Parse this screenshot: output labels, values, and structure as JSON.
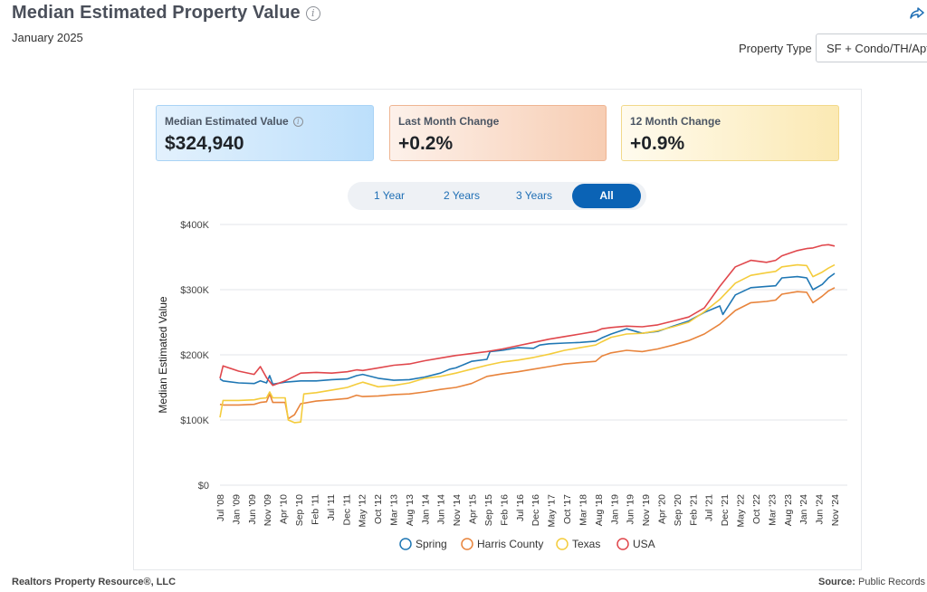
{
  "header": {
    "title": "Median Estimated Property Value",
    "subtitle": "January 2025",
    "property_type_label": "Property Type",
    "property_type_value": "SF + Condo/TH/Apt"
  },
  "stats": [
    {
      "label": "Median Estimated Value",
      "value": "$324,940"
    },
    {
      "label": "Last Month Change",
      "value": "+0.2%"
    },
    {
      "label": "12 Month Change",
      "value": "+0.9%"
    }
  ],
  "range_tabs": [
    {
      "label": "1 Year",
      "active": false
    },
    {
      "label": "2 Years",
      "active": false
    },
    {
      "label": "3 Years",
      "active": false
    },
    {
      "label": "All",
      "active": true
    }
  ],
  "footer": {
    "left": "Realtors Property Resource®, LLC",
    "source_label": "Source:",
    "source_value": "Public Records"
  },
  "chart_data": {
    "type": "line",
    "title": "",
    "xlabel": "",
    "ylabel": "Median Estimated Value",
    "ylim": [
      0,
      400000
    ],
    "yticks": [
      0,
      100000,
      200000,
      300000,
      400000
    ],
    "ytick_labels": [
      "$0",
      "$100K",
      "$200K",
      "$300K",
      "$400K"
    ],
    "x_range": [
      "2008-07",
      "2025-01"
    ],
    "xtick_labels": [
      "Jul '08",
      "Jan '09",
      "Jun '09",
      "Nov '09",
      "Apr '10",
      "Sep '10",
      "Feb '11",
      "Jul '11",
      "Dec '11",
      "May '12",
      "Oct '12",
      "Mar '13",
      "Aug '13",
      "Jan '14",
      "Jun '14",
      "Nov '14",
      "Apr '15",
      "Sep '15",
      "Feb '16",
      "Jul '16",
      "Dec '16",
      "May '17",
      "Oct '17",
      "Mar '18",
      "Aug '18",
      "Jan '19",
      "Jun '19",
      "Nov '19",
      "Apr '20",
      "Sep '20",
      "Feb '21",
      "Jul '21",
      "Dec '21",
      "May '22",
      "Oct '22",
      "Mar '23",
      "Aug '23",
      "Jan '24",
      "Jun '24",
      "Nov '24"
    ],
    "grid": true,
    "legend_position": "bottom",
    "series": [
      {
        "name": "Spring",
        "color": "#1f77b4",
        "points": [
          [
            "2008-07",
            163000
          ],
          [
            "2008-08",
            160000
          ],
          [
            "2009-01",
            157000
          ],
          [
            "2009-06",
            156000
          ],
          [
            "2009-08",
            160000
          ],
          [
            "2009-10",
            157000
          ],
          [
            "2009-11",
            168000
          ],
          [
            "2009-12",
            155000
          ],
          [
            "2010-04",
            158000
          ],
          [
            "2010-09",
            160000
          ],
          [
            "2011-02",
            160000
          ],
          [
            "2011-07",
            162000
          ],
          [
            "2011-12",
            163000
          ],
          [
            "2012-03",
            168000
          ],
          [
            "2012-05",
            170000
          ],
          [
            "2012-10",
            164000
          ],
          [
            "2013-03",
            161000
          ],
          [
            "2013-08",
            162000
          ],
          [
            "2014-01",
            166000
          ],
          [
            "2014-06",
            172000
          ],
          [
            "2014-09",
            178000
          ],
          [
            "2014-11",
            180000
          ],
          [
            "2015-02",
            186000
          ],
          [
            "2015-04",
            190000
          ],
          [
            "2015-09",
            193000
          ],
          [
            "2015-10",
            205000
          ],
          [
            "2016-02",
            207000
          ],
          [
            "2016-07",
            211000
          ],
          [
            "2016-12",
            210000
          ],
          [
            "2017-02",
            215000
          ],
          [
            "2017-05",
            217000
          ],
          [
            "2017-10",
            218000
          ],
          [
            "2018-03",
            219000
          ],
          [
            "2018-08",
            221000
          ],
          [
            "2018-10",
            226000
          ],
          [
            "2019-01",
            232000
          ],
          [
            "2019-06",
            240000
          ],
          [
            "2019-11",
            233000
          ],
          [
            "2020-04",
            236000
          ],
          [
            "2020-09",
            244000
          ],
          [
            "2021-02",
            252000
          ],
          [
            "2021-07",
            265000
          ],
          [
            "2021-12",
            275000
          ],
          [
            "2022-01",
            262000
          ],
          [
            "2022-05",
            292000
          ],
          [
            "2022-10",
            303000
          ],
          [
            "2023-03",
            305000
          ],
          [
            "2023-06",
            306000
          ],
          [
            "2023-08",
            318000
          ],
          [
            "2024-01",
            320000
          ],
          [
            "2024-04",
            318000
          ],
          [
            "2024-06",
            300000
          ],
          [
            "2024-09",
            308000
          ],
          [
            "2024-11",
            318000
          ],
          [
            "2025-01",
            325000
          ]
        ]
      },
      {
        "name": "Harris County",
        "color": "#e8843c",
        "points": [
          [
            "2008-07",
            124000
          ],
          [
            "2008-08",
            123000
          ],
          [
            "2009-01",
            123000
          ],
          [
            "2009-06",
            124000
          ],
          [
            "2009-08",
            127000
          ],
          [
            "2009-10",
            128000
          ],
          [
            "2009-11",
            140000
          ],
          [
            "2009-12",
            127000
          ],
          [
            "2010-04",
            127000
          ],
          [
            "2010-05",
            102000
          ],
          [
            "2010-07",
            108000
          ],
          [
            "2010-09",
            125000
          ],
          [
            "2011-02",
            129000
          ],
          [
            "2011-07",
            131000
          ],
          [
            "2011-12",
            133000
          ],
          [
            "2012-03",
            138000
          ],
          [
            "2012-05",
            136000
          ],
          [
            "2012-10",
            137000
          ],
          [
            "2013-03",
            139000
          ],
          [
            "2013-08",
            140000
          ],
          [
            "2014-01",
            143000
          ],
          [
            "2014-06",
            147000
          ],
          [
            "2014-11",
            150000
          ],
          [
            "2015-04",
            156000
          ],
          [
            "2015-09",
            167000
          ],
          [
            "2016-02",
            171000
          ],
          [
            "2016-07",
            174000
          ],
          [
            "2016-12",
            178000
          ],
          [
            "2017-05",
            182000
          ],
          [
            "2017-10",
            186000
          ],
          [
            "2018-03",
            188000
          ],
          [
            "2018-08",
            190000
          ],
          [
            "2018-10",
            198000
          ],
          [
            "2019-01",
            203000
          ],
          [
            "2019-06",
            207000
          ],
          [
            "2019-11",
            205000
          ],
          [
            "2020-04",
            209000
          ],
          [
            "2020-09",
            215000
          ],
          [
            "2021-02",
            222000
          ],
          [
            "2021-07",
            232000
          ],
          [
            "2021-12",
            247000
          ],
          [
            "2022-05",
            268000
          ],
          [
            "2022-10",
            280000
          ],
          [
            "2023-03",
            282000
          ],
          [
            "2023-06",
            284000
          ],
          [
            "2023-08",
            293000
          ],
          [
            "2024-01",
            297000
          ],
          [
            "2024-04",
            296000
          ],
          [
            "2024-06",
            280000
          ],
          [
            "2024-09",
            290000
          ],
          [
            "2024-11",
            298000
          ],
          [
            "2025-01",
            303000
          ]
        ]
      },
      {
        "name": "Texas",
        "color": "#f4cc3c",
        "points": [
          [
            "2008-07",
            104000
          ],
          [
            "2008-08",
            130000
          ],
          [
            "2009-01",
            130000
          ],
          [
            "2009-06",
            131000
          ],
          [
            "2009-08",
            133000
          ],
          [
            "2009-10",
            134000
          ],
          [
            "2009-11",
            143000
          ],
          [
            "2009-12",
            134000
          ],
          [
            "2010-04",
            134000
          ],
          [
            "2010-05",
            100000
          ],
          [
            "2010-07",
            96000
          ],
          [
            "2010-09",
            97000
          ],
          [
            "2010-10",
            140000
          ],
          [
            "2011-02",
            142000
          ],
          [
            "2011-07",
            146000
          ],
          [
            "2011-12",
            150000
          ],
          [
            "2012-03",
            155000
          ],
          [
            "2012-05",
            158000
          ],
          [
            "2012-10",
            151000
          ],
          [
            "2013-03",
            153000
          ],
          [
            "2013-08",
            157000
          ],
          [
            "2014-01",
            164000
          ],
          [
            "2014-06",
            167000
          ],
          [
            "2014-11",
            172000
          ],
          [
            "2015-04",
            178000
          ],
          [
            "2015-09",
            184000
          ],
          [
            "2016-02",
            189000
          ],
          [
            "2016-07",
            192000
          ],
          [
            "2016-12",
            196000
          ],
          [
            "2017-05",
            201000
          ],
          [
            "2017-10",
            207000
          ],
          [
            "2018-03",
            211000
          ],
          [
            "2018-08",
            215000
          ],
          [
            "2018-10",
            220000
          ],
          [
            "2019-01",
            227000
          ],
          [
            "2019-06",
            232000
          ],
          [
            "2019-11",
            233000
          ],
          [
            "2020-04",
            237000
          ],
          [
            "2020-09",
            243000
          ],
          [
            "2021-02",
            250000
          ],
          [
            "2021-07",
            266000
          ],
          [
            "2021-12",
            285000
          ],
          [
            "2022-05",
            310000
          ],
          [
            "2022-10",
            322000
          ],
          [
            "2023-03",
            326000
          ],
          [
            "2023-06",
            328000
          ],
          [
            "2023-08",
            335000
          ],
          [
            "2024-01",
            338000
          ],
          [
            "2024-04",
            337000
          ],
          [
            "2024-06",
            320000
          ],
          [
            "2024-09",
            327000
          ],
          [
            "2024-11",
            333000
          ],
          [
            "2025-01",
            338000
          ]
        ]
      },
      {
        "name": "USA",
        "color": "#e0474c",
        "points": [
          [
            "2008-07",
            164000
          ],
          [
            "2008-08",
            183000
          ],
          [
            "2009-01",
            175000
          ],
          [
            "2009-06",
            170000
          ],
          [
            "2009-08",
            182000
          ],
          [
            "2009-10",
            165000
          ],
          [
            "2009-12",
            153000
          ],
          [
            "2010-04",
            160000
          ],
          [
            "2010-09",
            172000
          ],
          [
            "2011-02",
            173000
          ],
          [
            "2011-07",
            172000
          ],
          [
            "2011-12",
            174000
          ],
          [
            "2012-03",
            177000
          ],
          [
            "2012-05",
            176000
          ],
          [
            "2012-10",
            180000
          ],
          [
            "2013-03",
            184000
          ],
          [
            "2013-08",
            186000
          ],
          [
            "2014-01",
            191000
          ],
          [
            "2014-06",
            195000
          ],
          [
            "2014-11",
            199000
          ],
          [
            "2015-04",
            202000
          ],
          [
            "2015-09",
            205000
          ],
          [
            "2016-02",
            209000
          ],
          [
            "2016-07",
            214000
          ],
          [
            "2016-12",
            219000
          ],
          [
            "2017-05",
            224000
          ],
          [
            "2017-10",
            228000
          ],
          [
            "2018-03",
            232000
          ],
          [
            "2018-08",
            236000
          ],
          [
            "2018-10",
            240000
          ],
          [
            "2019-01",
            242000
          ],
          [
            "2019-06",
            244000
          ],
          [
            "2019-11",
            243000
          ],
          [
            "2020-04",
            246000
          ],
          [
            "2020-09",
            252000
          ],
          [
            "2021-02",
            258000
          ],
          [
            "2021-07",
            272000
          ],
          [
            "2021-12",
            305000
          ],
          [
            "2022-05",
            335000
          ],
          [
            "2022-10",
            345000
          ],
          [
            "2023-03",
            342000
          ],
          [
            "2023-06",
            345000
          ],
          [
            "2023-08",
            352000
          ],
          [
            "2024-01",
            360000
          ],
          [
            "2024-04",
            363000
          ],
          [
            "2024-06",
            364000
          ],
          [
            "2024-09",
            368000
          ],
          [
            "2024-11",
            369000
          ],
          [
            "2025-01",
            367000
          ]
        ]
      }
    ]
  }
}
